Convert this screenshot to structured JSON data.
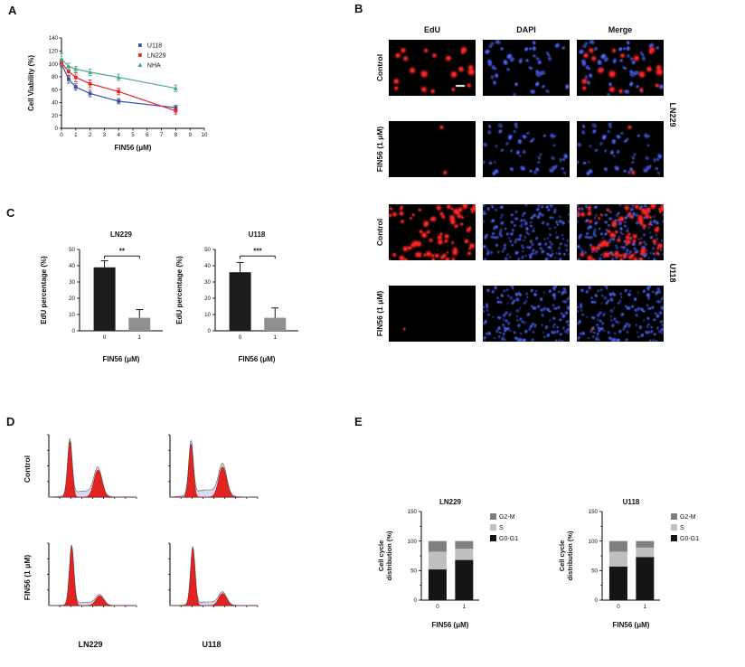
{
  "panels": {
    "A": {
      "letter": "A"
    },
    "B": {
      "letter": "B",
      "col_headers": [
        "EdU",
        "DAPI",
        "Merge"
      ],
      "group_labels": [
        "LN229",
        "U118"
      ],
      "rows": [
        {
          "label": "Control",
          "group": "LN229",
          "red": 20,
          "blue": 48,
          "cell_r": 2.3,
          "dot_r": 2.1,
          "scalebar": true
        },
        {
          "label": "FIN56 (1 μM)",
          "group": "LN229",
          "red": 2,
          "blue": 50,
          "cell_r": 2.3,
          "dot_r": 2.0,
          "scalebar": false
        },
        {
          "label": "Control",
          "group": "U118",
          "red": 75,
          "blue": 170,
          "cell_r": 1.7,
          "dot_r": 1.7,
          "scalebar": false
        },
        {
          "label": "FIN56 (1 μM)",
          "group": "U118",
          "red": 1,
          "blue": 160,
          "cell_r": 1.7,
          "dot_r": 1.7,
          "scalebar": false
        }
      ]
    },
    "C": {
      "letter": "C"
    },
    "D": {
      "letter": "D",
      "row_labels": [
        "Control",
        "FIN56 (1 μM)"
      ],
      "col_labels": [
        "LN229",
        "U118"
      ],
      "plots": [
        {
          "name": "Control LN229",
          "g1x": 0.24,
          "g1h": 0.92,
          "g2x": 0.56,
          "g2h": 0.45,
          "s": 0.1
        },
        {
          "name": "Control U118",
          "g1x": 0.24,
          "g1h": 0.88,
          "g2x": 0.6,
          "g2h": 0.5,
          "s": 0.12
        },
        {
          "name": "FIN56 LN229",
          "g1x": 0.26,
          "g1h": 0.98,
          "g2x": 0.58,
          "g2h": 0.16,
          "s": 0.05
        },
        {
          "name": "FIN56 U118",
          "g1x": 0.26,
          "g1h": 0.95,
          "g2x": 0.6,
          "g2h": 0.2,
          "s": 0.06
        }
      ]
    },
    "E": {
      "letter": "E"
    }
  },
  "palette": {
    "edu_red": "#ff2424",
    "dapi_blue": "#3a4ed6",
    "flow_red": "#e32322",
    "flow_s_fill": "#d9daf0"
  },
  "chart_data": [
    {
      "type": "line",
      "title": "",
      "x": [
        0,
        0.5,
        1,
        2,
        4,
        8
      ],
      "xticks": [
        0,
        1,
        2,
        3,
        4,
        5,
        6,
        7,
        8,
        9,
        10
      ],
      "yticks": [
        0,
        20,
        40,
        60,
        80,
        100,
        120,
        140
      ],
      "xlim": [
        0,
        10
      ],
      "ylim": [
        0,
        140
      ],
      "xlabel": "FIN56 (μM)",
      "ylabel": "Cell Viability (%)",
      "legend_position": "top-right-inside",
      "series": [
        {
          "name": "U118",
          "color": "#3a53a4",
          "marker": "square",
          "values": [
            100,
            76,
            64,
            54,
            42,
            32
          ],
          "errors": [
            5,
            6,
            5,
            5,
            4,
            4
          ]
        },
        {
          "name": "LN229",
          "color": "#e8252a",
          "marker": "square",
          "values": [
            102,
            88,
            79,
            69,
            57,
            27
          ],
          "errors": [
            5,
            8,
            7,
            6,
            5,
            5
          ]
        },
        {
          "name": "NHA",
          "color": "#49ab84",
          "marker": "triangle",
          "values": [
            107,
            96,
            92,
            87,
            79,
            62
          ],
          "errors": [
            9,
            5,
            4,
            5,
            5,
            5
          ]
        }
      ]
    },
    {
      "type": "bar",
      "title": "LN229",
      "categories": [
        "0",
        "1"
      ],
      "values": [
        39,
        8
      ],
      "errors": [
        4,
        5
      ],
      "bar_colors": [
        "#1c1c1c",
        "#909090"
      ],
      "significance": "**",
      "sig_y": 46,
      "xlabel": "FIN56 (μM)",
      "ylabel": "EdU percentage (%)",
      "ylim": [
        0,
        50
      ],
      "yticks": [
        0,
        10,
        20,
        30,
        40,
        50
      ]
    },
    {
      "type": "bar",
      "title": "U118",
      "categories": [
        "0",
        "1"
      ],
      "values": [
        36,
        8
      ],
      "errors": [
        6,
        6
      ],
      "bar_colors": [
        "#1c1c1c",
        "#909090"
      ],
      "significance": "***",
      "sig_y": 46,
      "xlabel": "FIN56 (μM)",
      "ylabel": "EdU percentage (%)",
      "ylim": [
        0,
        50
      ],
      "yticks": [
        0,
        10,
        20,
        30,
        40,
        50
      ]
    },
    {
      "type": "stacked-bar",
      "title": "LN229",
      "categories": [
        "0",
        "1"
      ],
      "xlabel": "FIN56 (μM)",
      "ylabel_lines": [
        "Cell cycle",
        "distribution (%)"
      ],
      "ylim": [
        0,
        150
      ],
      "yticks": [
        0,
        50,
        100,
        150
      ],
      "minor_yticks": [
        25,
        75,
        125
      ],
      "legend_position": "right",
      "series": [
        {
          "name": "G2-M",
          "color": "#7f7f7f",
          "values": [
            18,
            13
          ]
        },
        {
          "name": "S",
          "color": "#bfbfbf",
          "values": [
            30,
            19
          ]
        },
        {
          "name": "G0-G1",
          "color": "#151515",
          "values": [
            52,
            68
          ]
        }
      ]
    },
    {
      "type": "stacked-bar",
      "title": "U118",
      "categories": [
        "0",
        "1"
      ],
      "xlabel": "FIN56 (μM)",
      "ylabel_lines": [
        "Cell cycle",
        "distribution (%)"
      ],
      "ylim": [
        0,
        150
      ],
      "yticks": [
        0,
        50,
        100,
        150
      ],
      "minor_yticks": [
        25,
        75,
        125
      ],
      "legend_position": "right",
      "series": [
        {
          "name": "G2-M",
          "color": "#7f7f7f",
          "values": [
            18,
            11
          ]
        },
        {
          "name": "S",
          "color": "#bfbfbf",
          "values": [
            25,
            16
          ]
        },
        {
          "name": "G0-G1",
          "color": "#151515",
          "values": [
            57,
            73
          ]
        }
      ]
    }
  ]
}
